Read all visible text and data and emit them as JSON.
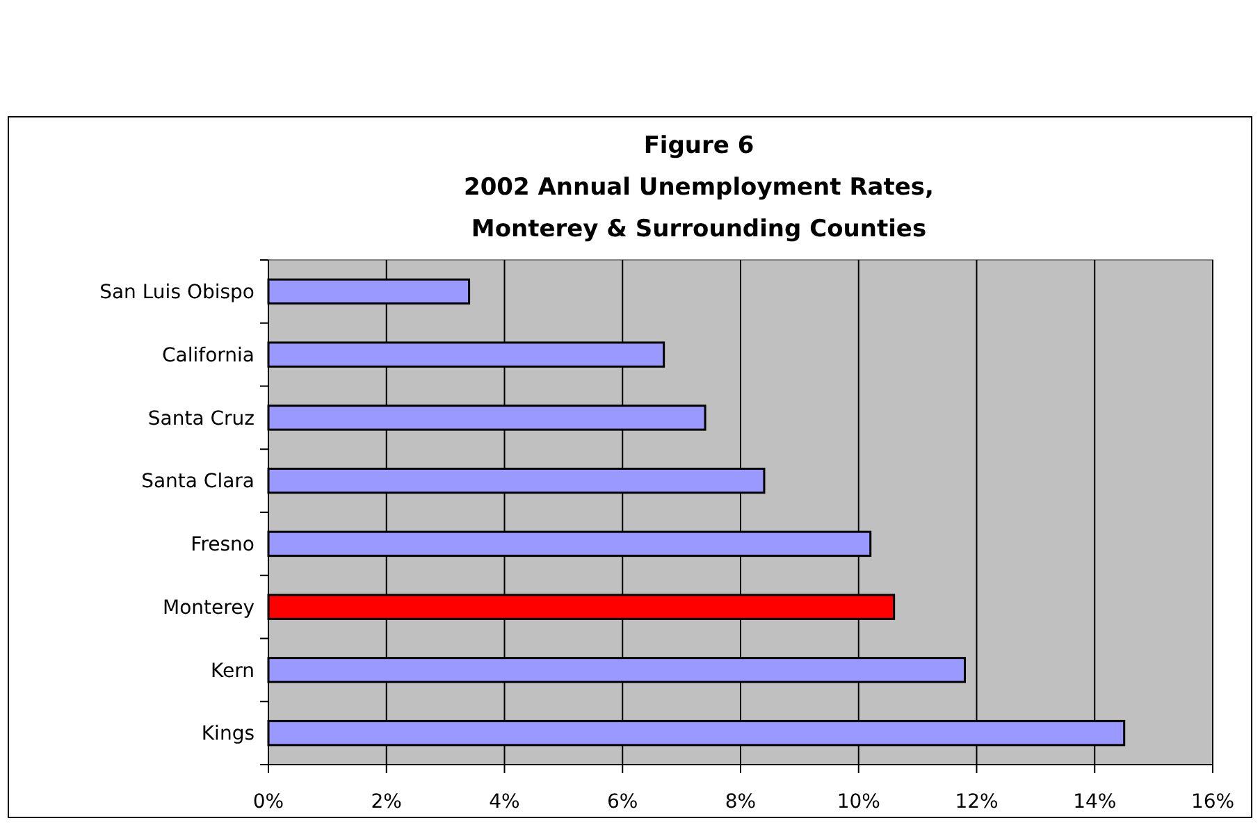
{
  "chart_data": {
    "type": "bar",
    "orientation": "horizontal",
    "title": "Figure 6",
    "subtitle": "2002 Annual Unemployment Rates,\nMonterey & Surrounding Counties",
    "categories": [
      "San Luis Obispo",
      "California",
      "Santa Cruz",
      "Santa Clara",
      "Fresno",
      "Monterey",
      "Kern",
      "Kings"
    ],
    "values": [
      3.4,
      6.7,
      7.4,
      8.4,
      10.2,
      10.6,
      11.8,
      14.5
    ],
    "colors": [
      "#9999ff",
      "#9999ff",
      "#9999ff",
      "#9999ff",
      "#9999ff",
      "#ff0000",
      "#9999ff",
      "#9999ff"
    ],
    "xlim": [
      0,
      16
    ],
    "xticks": [
      {
        "value": 0,
        "label": "0%"
      },
      {
        "value": 2,
        "label": "2%"
      },
      {
        "value": 4,
        "label": "4%"
      },
      {
        "value": 6,
        "label": "6%"
      },
      {
        "value": 8,
        "label": "8%"
      },
      {
        "value": 10,
        "label": "10%"
      },
      {
        "value": 12,
        "label": "12%"
      },
      {
        "value": 14,
        "label": "14%"
      },
      {
        "value": 16,
        "label": "16%"
      }
    ],
    "grid": "x"
  }
}
